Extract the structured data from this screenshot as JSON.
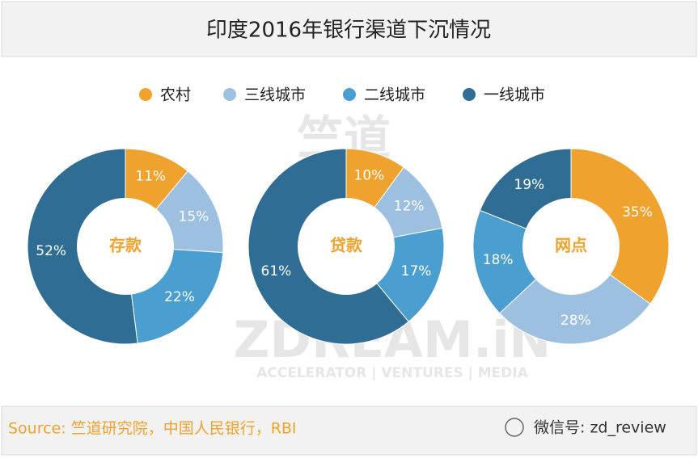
{
  "title": "印度2016年银行渠道下沉情况",
  "source": "Source: 竺道研究院，中国人民银行，RBI",
  "wechat": "微信号: zd_review",
  "watermark": [
    "竺道",
    "ZDREAM.iN",
    "ACCELERATOR | VENTURES | MEDIA"
  ],
  "chart_data": [
    {
      "type": "pie",
      "label": "存款",
      "categories": [
        "农村",
        "三线城市",
        "二线城市",
        "一线城市"
      ],
      "colors": [
        "#f0a22e",
        "#9dbfe0",
        "#4a9fd0",
        "#2f6d94"
      ],
      "values": [
        11,
        15,
        22,
        52
      ],
      "value_labels": [
        "11%",
        "15%",
        "22%",
        "52%"
      ]
    },
    {
      "type": "pie",
      "label": "贷款",
      "categories": [
        "农村",
        "三线城市",
        "二线城市",
        "一线城市"
      ],
      "colors": [
        "#f0a22e",
        "#9dbfe0",
        "#4a9fd0",
        "#2f6d94"
      ],
      "values": [
        10,
        12,
        17,
        61
      ],
      "value_labels": [
        "10%",
        "12%",
        "17%",
        "61%"
      ]
    },
    {
      "type": "pie",
      "label": "网点",
      "categories": [
        "农村",
        "三线城市",
        "二线城市",
        "一线城市"
      ],
      "colors": [
        "#f0a22e",
        "#9dbfe0",
        "#4a9fd0",
        "#2f6d94"
      ],
      "values": [
        35,
        28,
        18,
        19
      ],
      "value_labels": [
        "35%",
        "28%",
        "18%",
        "19%"
      ]
    }
  ]
}
